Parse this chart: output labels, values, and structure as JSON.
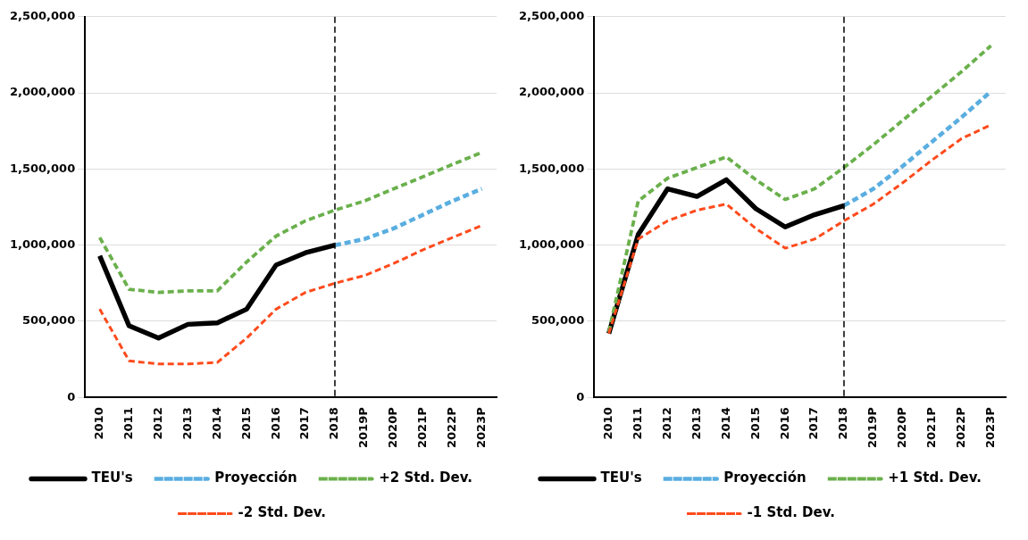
{
  "chart_data": [
    {
      "type": "line",
      "categories": [
        "2010",
        "2011",
        "2012",
        "2013",
        "2014",
        "2015",
        "2016",
        "2017",
        "2018",
        "2019P",
        "2020P",
        "2021P",
        "2022P",
        "2023P"
      ],
      "series": [
        {
          "name": "TEU's",
          "color": "#000000",
          "line_style": "solid",
          "values": [
            930000,
            470000,
            390000,
            480000,
            490000,
            580000,
            870000,
            950000,
            1000000,
            null,
            null,
            null,
            null,
            null
          ]
        },
        {
          "name": "Proyección",
          "color": "#5aaee0",
          "line_style": "dashed",
          "values": [
            null,
            null,
            null,
            null,
            null,
            null,
            null,
            null,
            1000000,
            1040000,
            1110000,
            1200000,
            1290000,
            1370000
          ]
        },
        {
          "name": "+2 Std. Dev.",
          "color": "#6ab04c",
          "line_style": "dashed",
          "values": [
            1050000,
            710000,
            690000,
            700000,
            700000,
            890000,
            1060000,
            1160000,
            1230000,
            1290000,
            1370000,
            1450000,
            1530000,
            1610000
          ]
        },
        {
          "name": "-2 Std. Dev.",
          "color": "#ff4a1c",
          "line_style": "dashed",
          "values": [
            580000,
            240000,
            220000,
            220000,
            230000,
            390000,
            580000,
            690000,
            750000,
            800000,
            880000,
            970000,
            1050000,
            1130000
          ]
        }
      ],
      "ylim": [
        0,
        2500000
      ],
      "yticks": [
        0,
        {
          "value": 500000,
          "label": "500,000"
        },
        {
          "value": 1000000,
          "label": "1,000,000"
        },
        {
          "value": 1500000,
          "label": "1,500,000"
        },
        {
          "value": 2000000,
          "label": "2,000,000"
        },
        {
          "value": 2500000,
          "label": "2,500,000"
        }
      ],
      "grid": "y",
      "legend": "bottom",
      "marker": "none",
      "ref_lines": [
        {
          "axis": "x",
          "value": "2018",
          "color": "#000000",
          "line_style": "dashed"
        }
      ]
    },
    {
      "type": "line",
      "categories": [
        "2010",
        "2011",
        "2012",
        "2013",
        "2014",
        "2015",
        "2016",
        "2017",
        "2018",
        "2019P",
        "2020P",
        "2021P",
        "2022P",
        "2023P"
      ],
      "series": [
        {
          "name": "TEU's",
          "color": "#000000",
          "line_style": "solid",
          "values": [
            420000,
            1070000,
            1370000,
            1320000,
            1430000,
            1240000,
            1120000,
            1200000,
            1260000,
            null,
            null,
            null,
            null,
            null
          ]
        },
        {
          "name": "Proyección",
          "color": "#5aaee0",
          "line_style": "dashed",
          "values": [
            null,
            null,
            null,
            null,
            null,
            null,
            null,
            null,
            1260000,
            1370000,
            1520000,
            1680000,
            1840000,
            2010000
          ]
        },
        {
          "name": "+1 Std. Dev.",
          "color": "#6ab04c",
          "line_style": "dashed",
          "values": [
            430000,
            1290000,
            1440000,
            1510000,
            1580000,
            1430000,
            1300000,
            1370000,
            1510000,
            1660000,
            1820000,
            1980000,
            2140000,
            2310000
          ]
        },
        {
          "name": "-1 Std. Dev.",
          "color": "#ff4a1c",
          "line_style": "dashed",
          "values": [
            420000,
            1040000,
            1160000,
            1230000,
            1270000,
            1110000,
            980000,
            1040000,
            1160000,
            1270000,
            1410000,
            1560000,
            1700000,
            1790000
          ]
        }
      ],
      "ylim": [
        0,
        2500000
      ],
      "yticks": [
        0,
        {
          "value": 500000,
          "label": "500,000"
        },
        {
          "value": 1000000,
          "label": "1,000,000"
        },
        {
          "value": 1500000,
          "label": "1,500,000"
        },
        {
          "value": 2000000,
          "label": "2,000,000"
        },
        {
          "value": 2500000,
          "label": "2,500,000"
        }
      ],
      "grid": "y",
      "legend": "bottom",
      "marker": "none",
      "ref_lines": [
        {
          "axis": "x",
          "value": "2018",
          "color": "#000000",
          "line_style": "dashed"
        }
      ]
    }
  ]
}
